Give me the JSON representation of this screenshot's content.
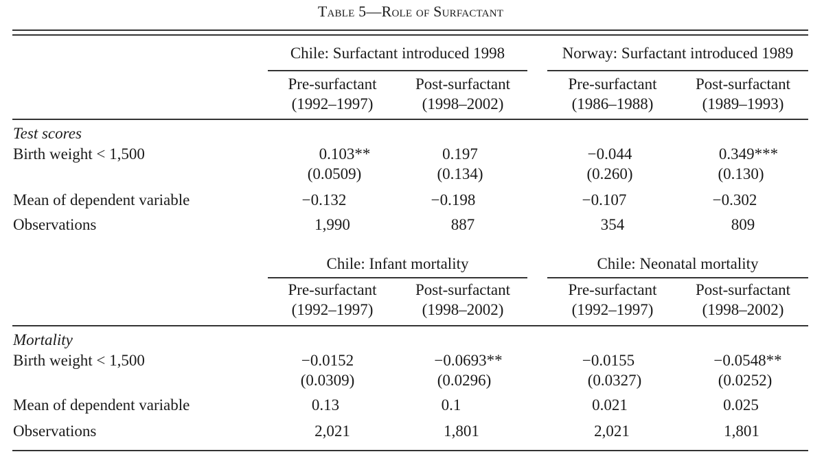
{
  "caption": {
    "main": "Table 5—Role of Surfactant"
  },
  "panel_a": {
    "groups": [
      {
        "title": "Chile: Surfactant introduced 1998"
      },
      {
        "title": "Norway: Surfactant introduced 1989"
      }
    ],
    "columns": [
      {
        "head": "Pre-surfactant",
        "years": "(1992–1997)"
      },
      {
        "head": "Post-surfactant",
        "years": "(1998–2002)"
      },
      {
        "head": "Pre-surfactant",
        "years": "(1986–1988)"
      },
      {
        "head": "Post-surfactant",
        "years": "(1989–1993)"
      }
    ],
    "section": "Test scores",
    "rows": [
      {
        "label": "Birth weight < 1,500",
        "values": [
          "0.103**",
          "0.197",
          "−0.044",
          "0.349***"
        ],
        "se": [
          "(0.0509)",
          "(0.134)",
          "(0.260)",
          "(0.130)"
        ]
      },
      {
        "label": "Mean of dependent variable",
        "values": [
          "−0.132",
          "−0.198",
          "−0.107",
          "−0.302"
        ]
      },
      {
        "label": "Observations",
        "values": [
          "1,990",
          "887",
          "354",
          "809"
        ]
      }
    ]
  },
  "panel_b": {
    "groups": [
      {
        "title": "Chile: Infant mortality"
      },
      {
        "title": "Chile: Neonatal mortality"
      }
    ],
    "columns": [
      {
        "head": "Pre-surfactant",
        "years": "(1992–1997)"
      },
      {
        "head": "Post-surfactant",
        "years": "(1998–2002)"
      },
      {
        "head": "Pre-surfactant",
        "years": "(1992–1997)"
      },
      {
        "head": "Post-surfactant",
        "years": "(1998–2002)"
      }
    ],
    "section": "Mortality",
    "rows": [
      {
        "label": "Birth weight < 1,500",
        "values": [
          "−0.0152",
          "−0.0693**",
          "−0.0155",
          "−0.0548**"
        ],
        "se": [
          "(0.0309)",
          "(0.0296)",
          "(0.0327)",
          "(0.0252)"
        ]
      },
      {
        "label": "Mean of dependent variable",
        "values": [
          "0.13",
          "0.1",
          "0.021",
          "0.025"
        ]
      },
      {
        "label": "Observations",
        "values": [
          "2,021",
          "1,801",
          "2,021",
          "1,801"
        ]
      }
    ]
  }
}
